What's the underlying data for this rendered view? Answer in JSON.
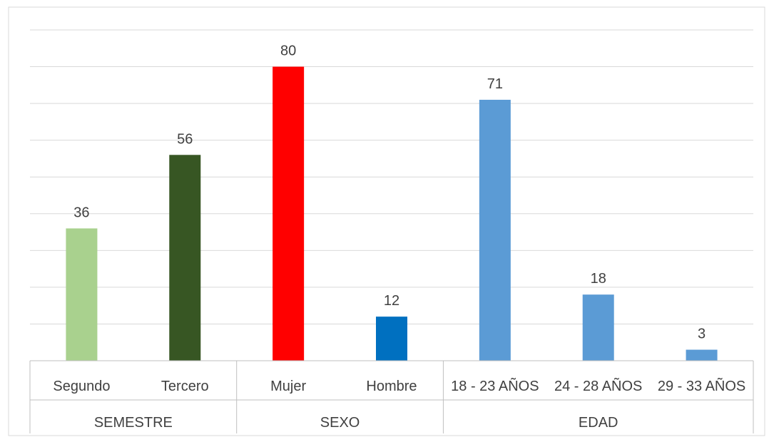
{
  "chart_data": {
    "type": "bar",
    "groups": [
      {
        "name": "SEMESTRE",
        "items": [
          {
            "category": "Segundo",
            "value": 36,
            "color": "#a9d18e"
          },
          {
            "category": "Tercero",
            "value": 56,
            "color": "#375623"
          }
        ]
      },
      {
        "name": "SEXO",
        "items": [
          {
            "category": "Mujer",
            "value": 80,
            "color": "#ff0000"
          },
          {
            "category": "Hombre",
            "value": 12,
            "color": "#0070c0"
          }
        ]
      },
      {
        "name": "EDAD",
        "items": [
          {
            "category": "18 - 23 AÑOS",
            "value": 71,
            "color": "#5b9bd5"
          },
          {
            "category": "24 - 28 AÑOS",
            "value": 18,
            "color": "#5b9bd5"
          },
          {
            "category": "29 - 33 AÑOS",
            "value": 3,
            "color": "#5b9bd5"
          }
        ]
      }
    ],
    "ylim": [
      0,
      90
    ],
    "grid": true,
    "gridline_step": 10,
    "data_labels": true,
    "legend": "none"
  }
}
